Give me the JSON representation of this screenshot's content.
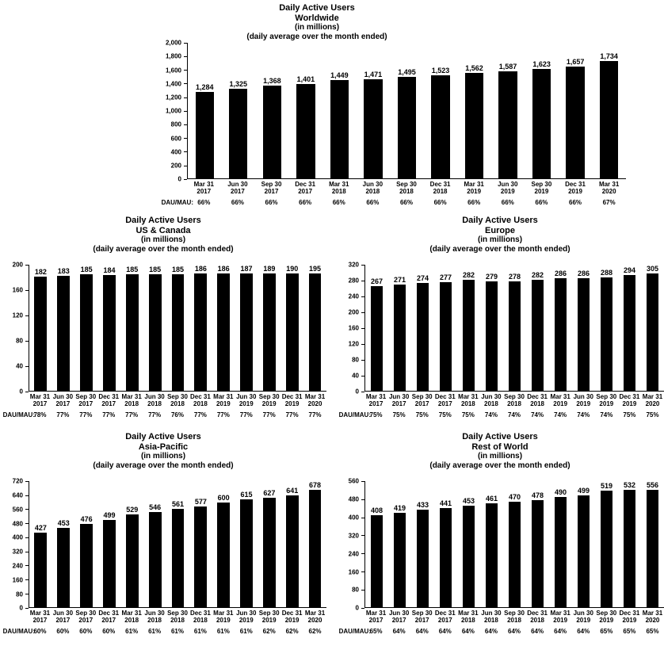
{
  "page_background": "#ffffff",
  "bar_color": "#000000",
  "dau_mau_label": "DAU/MAU:",
  "chart_data": [
    {
      "type": "bar",
      "title": "Daily Active Users",
      "subtitle": "Worldwide",
      "unit_line": "(in millions)",
      "note_line": "(daily average over the month ended)",
      "xlabel": "",
      "ylabel": "",
      "grid": false,
      "legend": "none",
      "ylim": [
        0,
        2000
      ],
      "ytick": 200,
      "ytick_labels": [
        "2,000",
        "1,800",
        "1,600",
        "1,400",
        "1,200",
        "1,000",
        "800",
        "600",
        "400",
        "200",
        "0"
      ],
      "categories": [
        "Mar 31 2017",
        "Jun 30 2017",
        "Sep 30 2017",
        "Dec 31 2017",
        "Mar 31 2018",
        "Jun 30 2018",
        "Sep 30 2018",
        "Dec 31 2018",
        "Mar 31 2019",
        "Jun 30 2019",
        "Sep 30 2019",
        "Dec 31 2019",
        "Mar 31 2020"
      ],
      "values": [
        1284,
        1325,
        1368,
        1401,
        1449,
        1471,
        1495,
        1523,
        1562,
        1587,
        1623,
        1657,
        1734
      ],
      "value_labels": [
        "1,284",
        "1,325",
        "1,368",
        "1,401",
        "1,449",
        "1,471",
        "1,495",
        "1,523",
        "1,562",
        "1,587",
        "1,623",
        "1,657",
        "1,734"
      ],
      "dau_mau": [
        "66%",
        "66%",
        "66%",
        "66%",
        "66%",
        "66%",
        "66%",
        "66%",
        "66%",
        "66%",
        "66%",
        "66%",
        "67%"
      ]
    },
    {
      "type": "bar",
      "title": "Daily Active Users",
      "subtitle": "US & Canada",
      "unit_line": "(in millions)",
      "note_line": "(daily average over the month ended)",
      "xlabel": "",
      "ylabel": "",
      "grid": false,
      "legend": "none",
      "ylim": [
        0,
        200
      ],
      "ytick": 40,
      "ytick_labels": [
        "200",
        "160",
        "120",
        "80",
        "40",
        "0"
      ],
      "categories": [
        "Mar 31 2017",
        "Jun 30 2017",
        "Sep 30 2017",
        "Dec 31 2017",
        "Mar 31 2018",
        "Jun 30 2018",
        "Sep 30 2018",
        "Dec 31 2018",
        "Mar 31 2019",
        "Jun 30 2019",
        "Sep 30 2019",
        "Dec 31 2019",
        "Mar 31 2020"
      ],
      "values": [
        182,
        183,
        185,
        184,
        185,
        185,
        185,
        186,
        186,
        187,
        189,
        190,
        195
      ],
      "value_labels": [
        "182",
        "183",
        "185",
        "184",
        "185",
        "185",
        "185",
        "186",
        "186",
        "187",
        "189",
        "190",
        "195"
      ],
      "dau_mau": [
        "78%",
        "77%",
        "77%",
        "77%",
        "77%",
        "77%",
        "76%",
        "77%",
        "77%",
        "77%",
        "77%",
        "77%",
        "77%"
      ]
    },
    {
      "type": "bar",
      "title": "Daily Active Users",
      "subtitle": "Europe",
      "unit_line": "(in millions)",
      "note_line": "(daily average over the month ended)",
      "xlabel": "",
      "ylabel": "",
      "grid": false,
      "legend": "none",
      "ylim": [
        0,
        320
      ],
      "ytick": 40,
      "ytick_labels": [
        "320",
        "280",
        "240",
        "200",
        "160",
        "120",
        "80",
        "40",
        "0"
      ],
      "categories": [
        "Mar 31 2017",
        "Jun 30 2017",
        "Sep 30 2017",
        "Dec 31 2017",
        "Mar 31 2018",
        "Jun 30 2018",
        "Sep 30 2018",
        "Dec 31 2018",
        "Mar 31 2019",
        "Jun 30 2019",
        "Sep 30 2019",
        "Dec 31 2019",
        "Mar 31 2020"
      ],
      "values": [
        267,
        271,
        274,
        277,
        282,
        279,
        278,
        282,
        286,
        286,
        288,
        294,
        305
      ],
      "value_labels": [
        "267",
        "271",
        "274",
        "277",
        "282",
        "279",
        "278",
        "282",
        "286",
        "286",
        "288",
        "294",
        "305"
      ],
      "dau_mau": [
        "75%",
        "75%",
        "75%",
        "75%",
        "75%",
        "74%",
        "74%",
        "74%",
        "74%",
        "74%",
        "74%",
        "75%",
        "75%"
      ]
    },
    {
      "type": "bar",
      "title": "Daily Active Users",
      "subtitle": "Asia-Pacific",
      "unit_line": "(in millions)",
      "note_line": "(daily average over the month ended)",
      "xlabel": "",
      "ylabel": "",
      "grid": false,
      "legend": "none",
      "ylim": [
        0,
        720
      ],
      "ytick": 80,
      "ytick_labels": [
        "720",
        "640",
        "560",
        "480",
        "400",
        "320",
        "240",
        "160",
        "80",
        "0"
      ],
      "categories": [
        "Mar 31 2017",
        "Jun 30 2017",
        "Sep 30 2017",
        "Dec 31 2017",
        "Mar 31 2018",
        "Jun 30 2018",
        "Sep 30 2018",
        "Dec 31 2018",
        "Mar 31 2019",
        "Jun 30 2019",
        "Sep 30 2019",
        "Dec 31 2019",
        "Mar 31 2020"
      ],
      "values": [
        427,
        453,
        476,
        499,
        529,
        546,
        561,
        577,
        600,
        615,
        627,
        641,
        678
      ],
      "value_labels": [
        "427",
        "453",
        "476",
        "499",
        "529",
        "546",
        "561",
        "577",
        "600",
        "615",
        "627",
        "641",
        "678"
      ],
      "dau_mau": [
        "60%",
        "60%",
        "60%",
        "60%",
        "61%",
        "61%",
        "61%",
        "61%",
        "61%",
        "61%",
        "62%",
        "62%",
        "62%"
      ]
    },
    {
      "type": "bar",
      "title": "Daily Active Users",
      "subtitle": "Rest of World",
      "unit_line": "(in millions)",
      "note_line": "(daily average over the month ended)",
      "xlabel": "",
      "ylabel": "",
      "grid": false,
      "legend": "none",
      "ylim": [
        0,
        560
      ],
      "ytick": 80,
      "ytick_labels": [
        "560",
        "480",
        "400",
        "320",
        "240",
        "160",
        "80",
        "0"
      ],
      "categories": [
        "Mar 31 2017",
        "Jun 30 2017",
        "Sep 30 2017",
        "Dec 31 2017",
        "Mar 31 2018",
        "Jun 30 2018",
        "Sep 30 2018",
        "Dec 31 2018",
        "Mar 31 2019",
        "Jun 30 2019",
        "Sep 30 2019",
        "Dec 31 2019",
        "Mar 31 2020"
      ],
      "values": [
        408,
        419,
        433,
        441,
        453,
        461,
        470,
        478,
        490,
        499,
        519,
        532,
        556
      ],
      "value_labels": [
        "408",
        "419",
        "433",
        "441",
        "453",
        "461",
        "470",
        "478",
        "490",
        "499",
        "519",
        "532",
        "556"
      ],
      "dau_mau": [
        "65%",
        "64%",
        "64%",
        "64%",
        "64%",
        "64%",
        "64%",
        "64%",
        "64%",
        "64%",
        "65%",
        "65%",
        "65%"
      ]
    }
  ]
}
